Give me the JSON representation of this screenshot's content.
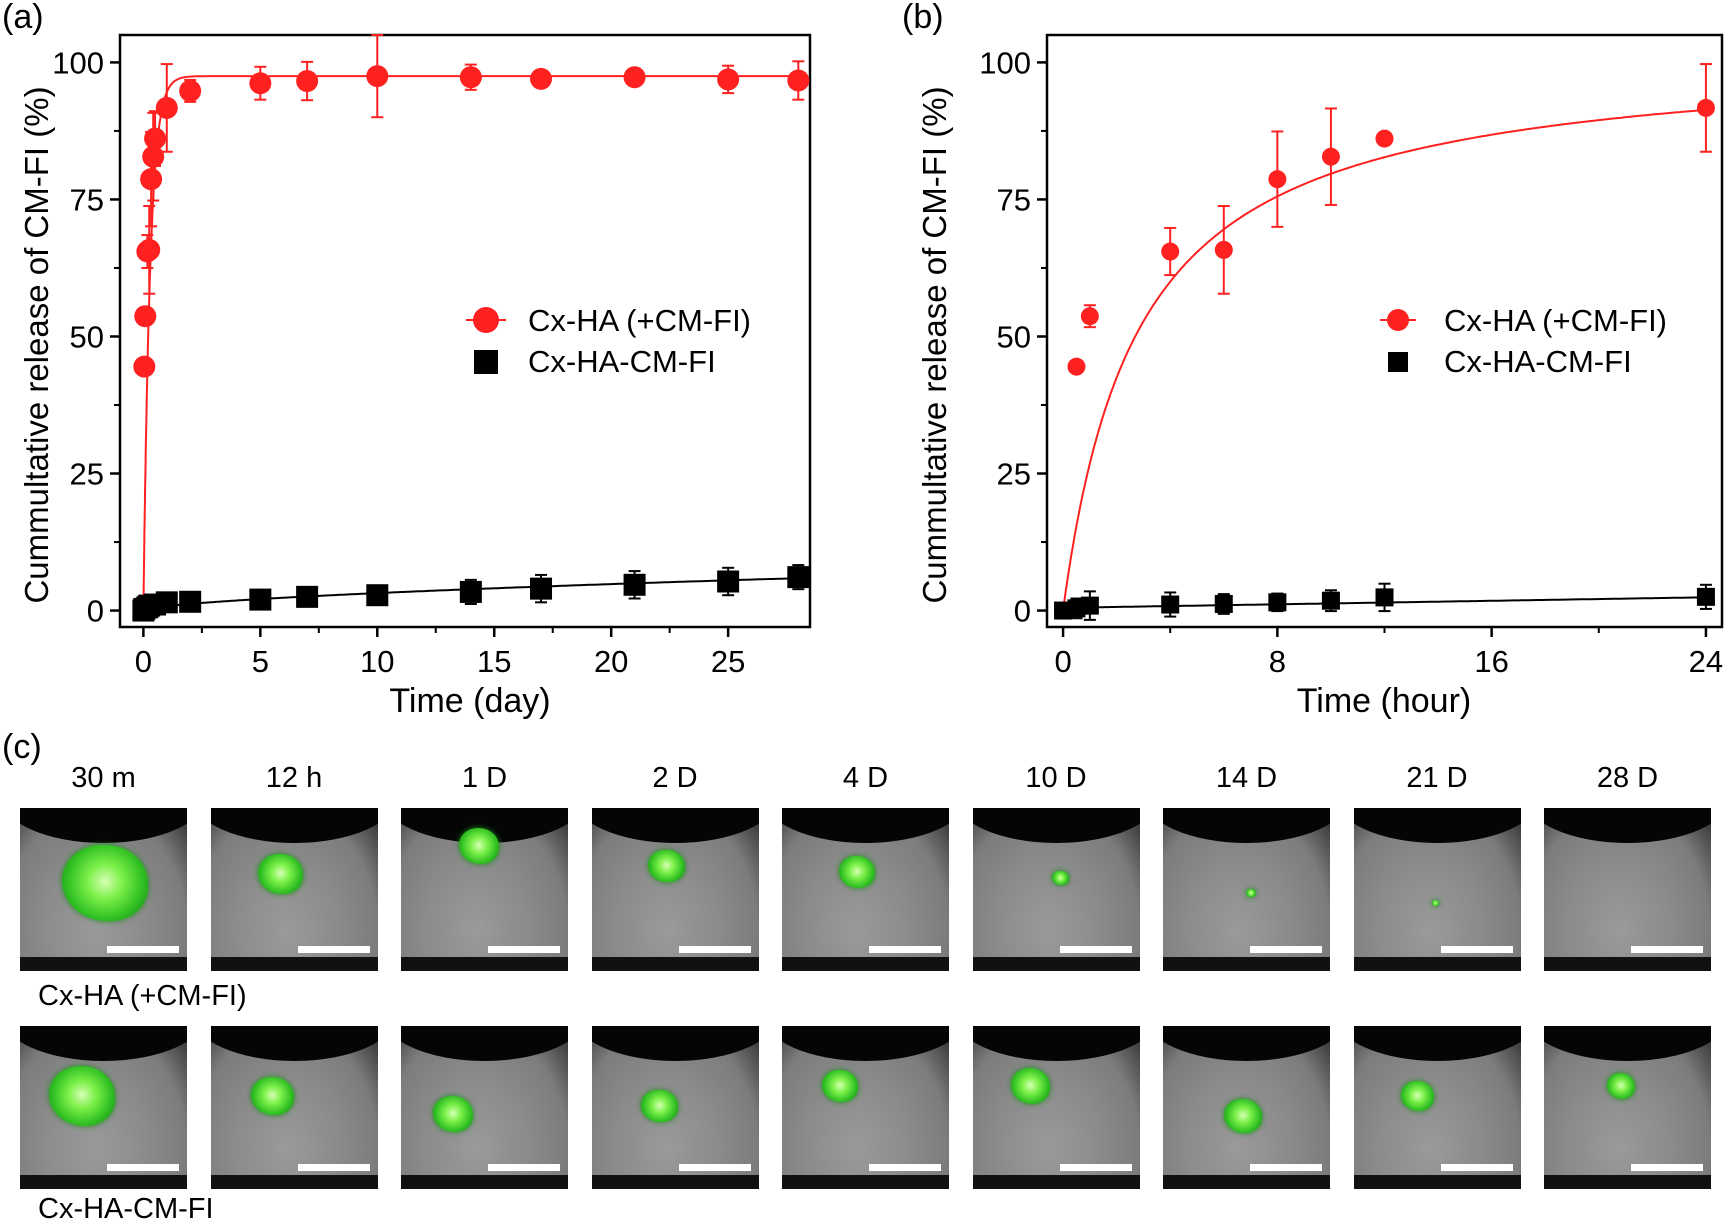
{
  "panels": {
    "a": "(a)",
    "b": "(b)",
    "c": "(c)"
  },
  "chart_data": [
    {
      "type": "scatter",
      "panel": "(a)",
      "xlabel": "Time (day)",
      "ylabel": "Cummultative release of CM-FI (%)",
      "xlim": [
        -1,
        28.5
      ],
      "ylim": [
        -3,
        105
      ],
      "xticks": [
        0,
        5,
        10,
        15,
        20,
        25
      ],
      "yticks": [
        0,
        25,
        50,
        75,
        100
      ],
      "legend_position": "center-right",
      "series": [
        {
          "name": "Cx-HA (+CM-FI)",
          "color": "#ff2020",
          "marker": "circle",
          "x": [
            0.0,
            0.04,
            0.08,
            0.17,
            0.25,
            0.33,
            0.42,
            0.5,
            1,
            2,
            5,
            7,
            10,
            14,
            17,
            21,
            25,
            28
          ],
          "y": [
            0.0,
            44.5,
            53.7,
            65.5,
            65.8,
            78.7,
            82.8,
            86.1,
            91.7,
            94.8,
            96.2,
            96.6,
            97.5,
            97.3,
            97.0,
            97.3,
            96.9,
            96.7
          ],
          "err": [
            0,
            1,
            1.5,
            3,
            8,
            8.6,
            8,
            5,
            8,
            2,
            3,
            3.5,
            7.5,
            2.3,
            1.5,
            1.2,
            2.5,
            3.5
          ]
        },
        {
          "name": "Cx-HA-CM-FI",
          "color": "#000000",
          "marker": "square",
          "x": [
            0,
            0.04,
            0.17,
            0.25,
            0.5,
            1,
            2,
            5,
            7,
            10,
            14,
            17,
            21,
            25,
            28
          ],
          "y": [
            0,
            0.3,
            0.6,
            0.9,
            1.1,
            1.5,
            1.6,
            2.0,
            2.5,
            2.8,
            3.4,
            4.0,
            4.7,
            5.3,
            6.1
          ],
          "err": [
            0,
            0.3,
            0.5,
            1.5,
            1.3,
            1.0,
            0.9,
            1.2,
            1.5,
            1.5,
            2.2,
            2.5,
            2.5,
            2.5,
            2.2
          ]
        }
      ],
      "fits": [
        {
          "series": "Cx-HA (+CM-FI)",
          "color": "#ff2020",
          "model": "asymptotic",
          "plateau": 97.5,
          "rate": 3.5
        },
        {
          "series": "Cx-HA-CM-FI",
          "color": "#000000",
          "model": "power",
          "coef": 0.8,
          "exponent": 0.6
        }
      ]
    },
    {
      "type": "scatter",
      "panel": "(b)",
      "xlabel": "Time (hour)",
      "ylabel": "Cummultative release of CM-FI (%)",
      "xlim": [
        -0.6,
        24.6
      ],
      "ylim": [
        -3,
        105
      ],
      "xticks": [
        0,
        8,
        16,
        24
      ],
      "yticks": [
        0,
        25,
        50,
        75,
        100
      ],
      "legend_position": "center-right",
      "series": [
        {
          "name": "Cx-HA (+CM-FI)",
          "color": "#ff2020",
          "marker": "circle",
          "x": [
            0,
            0.5,
            1,
            4,
            6,
            8,
            10,
            12,
            24
          ],
          "y": [
            0,
            44.5,
            53.7,
            65.5,
            65.8,
            78.7,
            82.8,
            86.1,
            91.7
          ],
          "err": [
            0,
            1,
            2,
            4.3,
            8,
            8.7,
            8.8,
            0.5,
            8
          ]
        },
        {
          "name": "Cx-HA-CM-FI",
          "color": "#000000",
          "marker": "square",
          "x": [
            0,
            0.5,
            1,
            4,
            6,
            8,
            10,
            12,
            24
          ],
          "y": [
            0,
            0.4,
            0.9,
            1.1,
            1.2,
            1.5,
            1.8,
            2.4,
            2.5
          ],
          "err": [
            0,
            1.8,
            2.6,
            2.2,
            1.8,
            1.6,
            1.9,
            2.5,
            2.2
          ]
        }
      ],
      "fits": [
        {
          "series": "Cx-HA (+CM-FI)",
          "color": "#ff2020",
          "model": "saturation",
          "vmax": 102,
          "km": 2.8
        },
        {
          "series": "Cx-HA-CM-FI",
          "color": "#000000",
          "model": "linear",
          "intercept": 0.5,
          "slope": 0.08
        }
      ]
    }
  ],
  "imaging": {
    "time_labels": [
      "30 m",
      "12 h",
      "1 D",
      "2 D",
      "4 D",
      "10 D",
      "14 D",
      "21 D",
      "28 D"
    ],
    "rows": [
      {
        "label": "Cx-HA (+CM-FI)",
        "fluorescence_intensity": [
          1.0,
          0.45,
          0.35,
          0.3,
          0.28,
          0.06,
          0.02,
          0.01,
          0.0
        ]
      },
      {
        "label": "Cx-HA-CM-FI",
        "fluorescence_intensity": [
          1.0,
          0.4,
          0.38,
          0.3,
          0.3,
          0.35,
          0.33,
          0.25,
          0.18
        ]
      }
    ]
  }
}
